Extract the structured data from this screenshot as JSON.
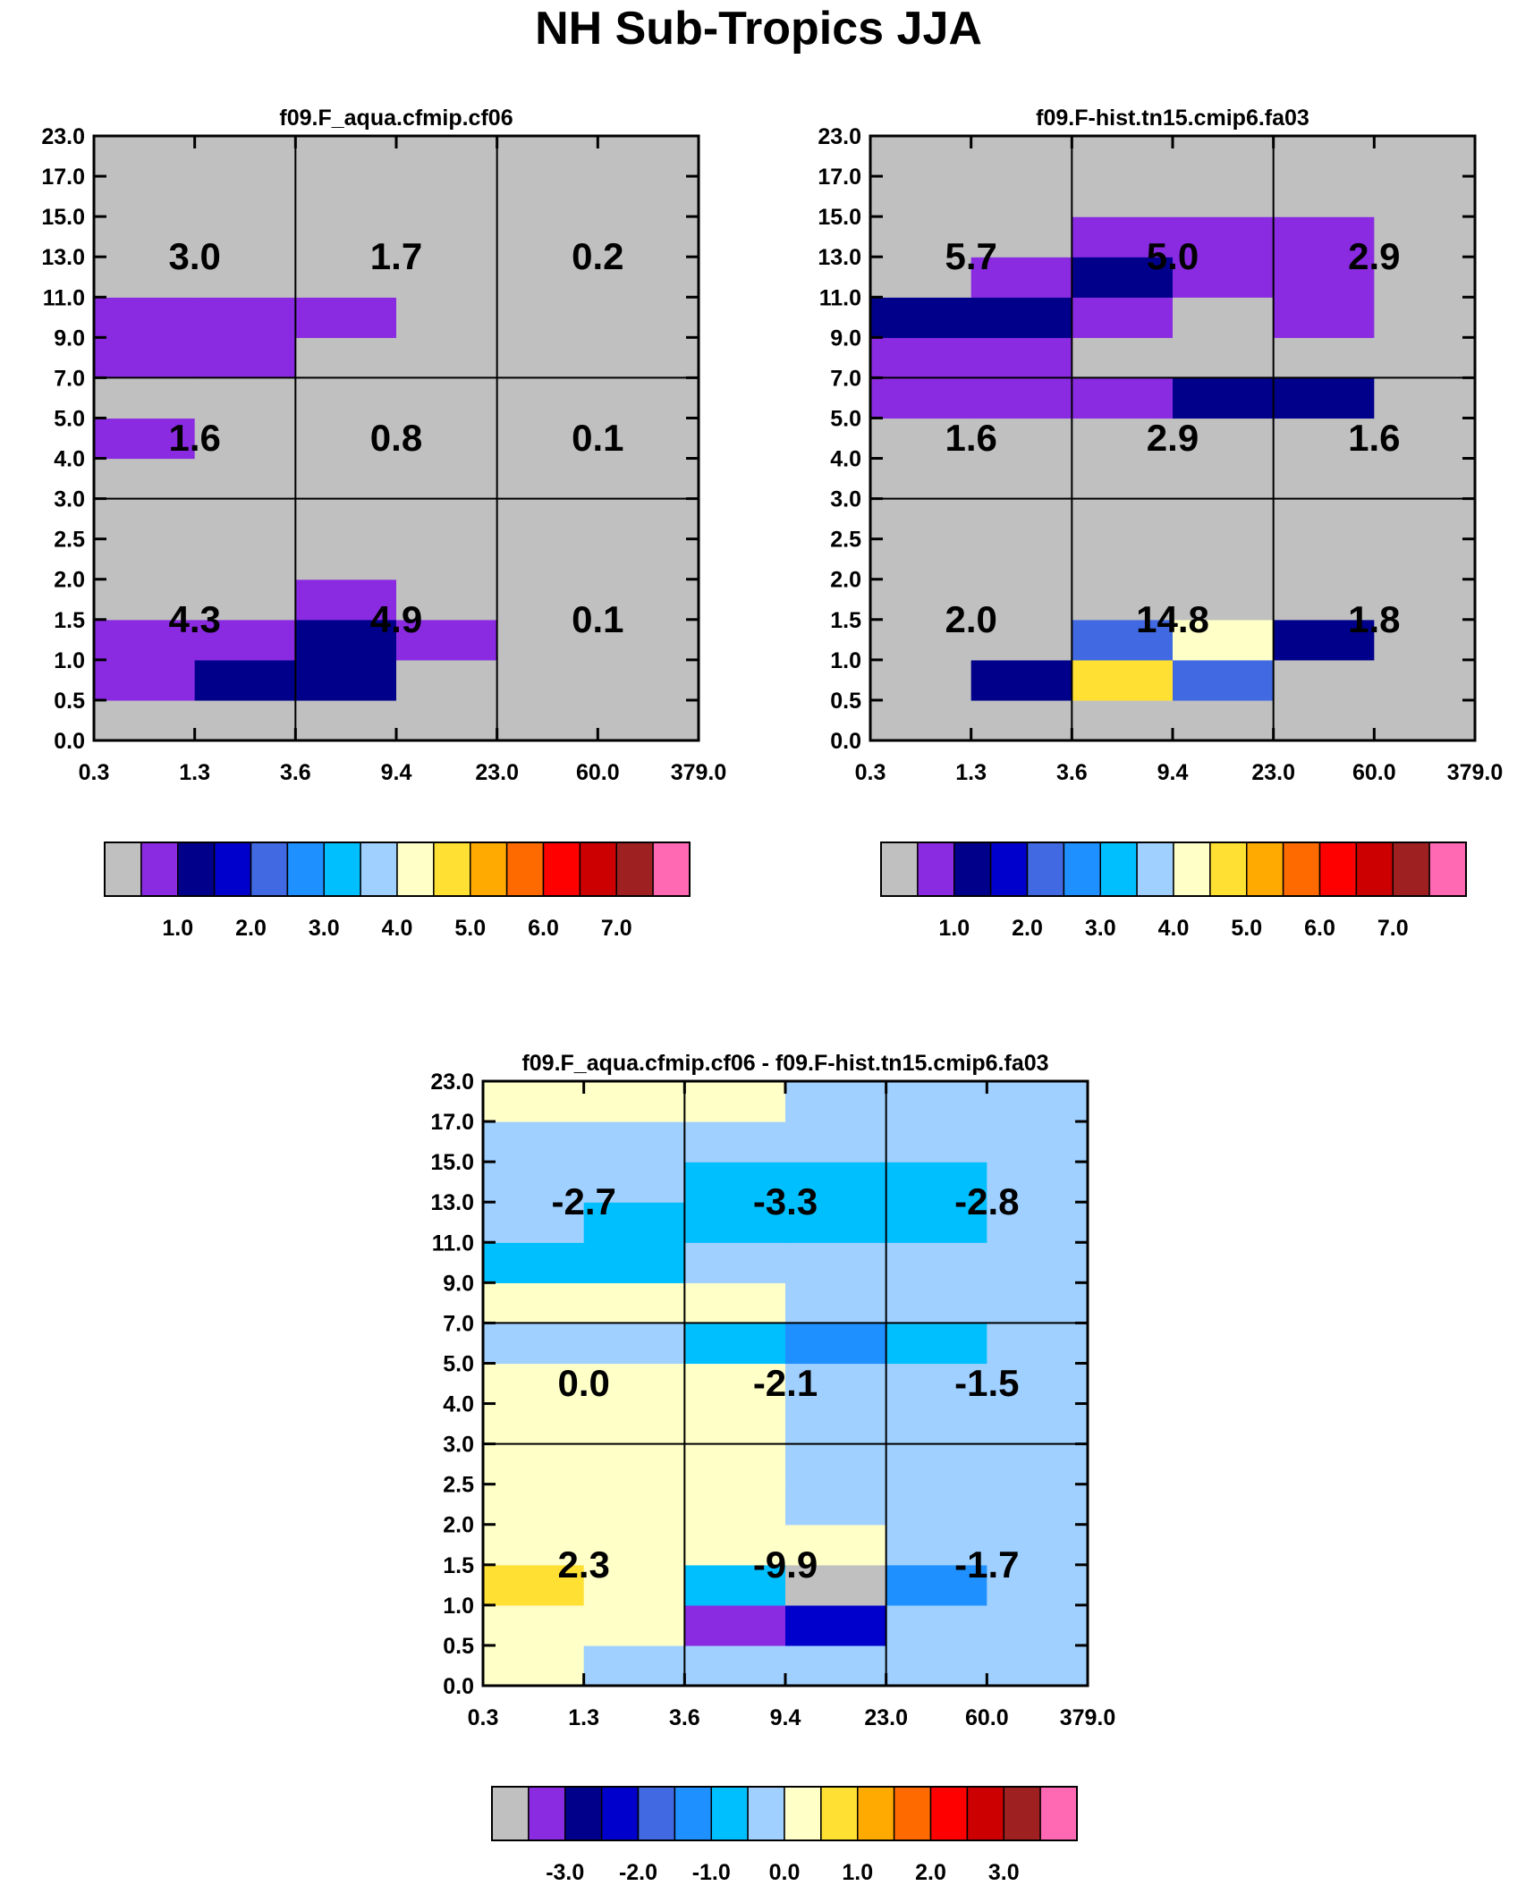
{
  "title": "NH Sub-Tropics JJA",
  "colors": {
    "palette": [
      "#c0c0c0",
      "#8a2be2",
      "#00008b",
      "#0000cd",
      "#4169e1",
      "#1e90ff",
      "#00bfff",
      "#a0d0ff",
      "#ffffc8",
      "#ffe033",
      "#ffaa00",
      "#ff6a00",
      "#ff0000",
      "#cc0000",
      "#9e2020",
      "#ff69b4"
    ],
    "background": "#c0c0c0"
  },
  "chart_data": [
    {
      "type": "heatmap",
      "title": "f09.F_aqua.cfmip.cf06",
      "x_tick_labels": [
        "0.3",
        "1.3",
        "3.6",
        "9.4",
        "23.0",
        "60.0",
        "379.0"
      ],
      "y_tick_labels": [
        "0.0",
        "0.5",
        "1.0",
        "1.5",
        "2.0",
        "2.5",
        "3.0",
        "4.0",
        "5.0",
        "7.0",
        "9.0",
        "11.0",
        "13.0",
        "15.0",
        "17.0",
        "23.0"
      ],
      "cell_color_index": [
        [
          0,
          0,
          0,
          0,
          0,
          0
        ],
        [
          1,
          2,
          2,
          0,
          0,
          0
        ],
        [
          1,
          1,
          2,
          1,
          0,
          0
        ],
        [
          0,
          0,
          1,
          0,
          0,
          0
        ],
        [
          0,
          0,
          0,
          0,
          0,
          0
        ],
        [
          0,
          0,
          0,
          0,
          0,
          0
        ],
        [
          0,
          0,
          0,
          0,
          0,
          0
        ],
        [
          1,
          0,
          0,
          0,
          0,
          0
        ],
        [
          0,
          0,
          0,
          0,
          0,
          0
        ],
        [
          1,
          1,
          0,
          0,
          0,
          0
        ],
        [
          1,
          1,
          1,
          0,
          0,
          0
        ],
        [
          0,
          0,
          0,
          0,
          0,
          0
        ],
        [
          0,
          0,
          0,
          0,
          0,
          0
        ],
        [
          0,
          0,
          0,
          0,
          0,
          0
        ],
        [
          0,
          0,
          0,
          0,
          0,
          0
        ]
      ],
      "box_labels": [
        [
          "4.3",
          "4.9",
          "0.1"
        ],
        [
          "1.6",
          "0.8",
          "0.1"
        ],
        [
          "3.0",
          "1.7",
          "0.2"
        ]
      ],
      "colorbar": {
        "labels": [
          "1.0",
          "2.0",
          "3.0",
          "4.0",
          "5.0",
          "6.0",
          "7.0"
        ]
      }
    },
    {
      "type": "heatmap",
      "title": "f09.F-hist.tn15.cmip6.fa03",
      "x_tick_labels": [
        "0.3",
        "1.3",
        "3.6",
        "9.4",
        "23.0",
        "60.0",
        "379.0"
      ],
      "y_tick_labels": [
        "0.0",
        "0.5",
        "1.0",
        "1.5",
        "2.0",
        "2.5",
        "3.0",
        "4.0",
        "5.0",
        "7.0",
        "9.0",
        "11.0",
        "13.0",
        "15.0",
        "17.0",
        "23.0"
      ],
      "cell_color_index": [
        [
          0,
          0,
          0,
          0,
          0,
          0
        ],
        [
          0,
          2,
          9,
          4,
          0,
          0
        ],
        [
          0,
          0,
          4,
          8,
          2,
          0
        ],
        [
          0,
          0,
          0,
          0,
          0,
          0
        ],
        [
          0,
          0,
          0,
          0,
          0,
          0
        ],
        [
          0,
          0,
          0,
          0,
          0,
          0
        ],
        [
          0,
          0,
          0,
          0,
          0,
          0
        ],
        [
          0,
          0,
          0,
          0,
          0,
          0
        ],
        [
          1,
          1,
          1,
          2,
          2,
          0
        ],
        [
          1,
          1,
          0,
          0,
          0,
          0
        ],
        [
          2,
          2,
          1,
          0,
          1,
          0
        ],
        [
          0,
          1,
          2,
          1,
          1,
          0
        ],
        [
          0,
          0,
          1,
          1,
          1,
          0
        ],
        [
          0,
          0,
          0,
          0,
          0,
          0
        ],
        [
          0,
          0,
          0,
          0,
          0,
          0
        ]
      ],
      "box_labels": [
        [
          "2.0",
          "14.8",
          "1.8"
        ],
        [
          "1.6",
          "2.9",
          "1.6"
        ],
        [
          "5.7",
          "5.0",
          "2.9"
        ]
      ],
      "colorbar": {
        "labels": [
          "1.0",
          "2.0",
          "3.0",
          "4.0",
          "5.0",
          "6.0",
          "7.0"
        ]
      }
    },
    {
      "type": "heatmap",
      "title": "f09.F_aqua.cfmip.cf06 - f09.F-hist.tn15.cmip6.fa03",
      "x_tick_labels": [
        "0.3",
        "1.3",
        "3.6",
        "9.4",
        "23.0",
        "60.0",
        "379.0"
      ],
      "y_tick_labels": [
        "0.0",
        "0.5",
        "1.0",
        "1.5",
        "2.0",
        "2.5",
        "3.0",
        "4.0",
        "5.0",
        "7.0",
        "9.0",
        "11.0",
        "13.0",
        "15.0",
        "17.0",
        "23.0"
      ],
      "cell_color_index": [
        [
          8,
          7,
          7,
          7,
          7,
          7
        ],
        [
          8,
          8,
          1,
          3,
          7,
          7
        ],
        [
          9,
          8,
          6,
          0,
          5,
          7
        ],
        [
          8,
          8,
          8,
          8,
          7,
          7
        ],
        [
          8,
          8,
          8,
          7,
          7,
          7
        ],
        [
          8,
          8,
          8,
          7,
          7,
          7
        ],
        [
          8,
          8,
          8,
          7,
          7,
          7
        ],
        [
          8,
          8,
          8,
          7,
          7,
          7
        ],
        [
          7,
          7,
          6,
          5,
          6,
          7
        ],
        [
          8,
          8,
          8,
          7,
          7,
          7
        ],
        [
          6,
          6,
          7,
          7,
          7,
          7
        ],
        [
          7,
          6,
          6,
          6,
          6,
          7
        ],
        [
          7,
          7,
          6,
          6,
          6,
          7
        ],
        [
          7,
          7,
          7,
          7,
          7,
          7
        ],
        [
          8,
          8,
          8,
          7,
          7,
          7
        ]
      ],
      "box_labels": [
        [
          "2.3",
          "-9.9",
          "-1.7"
        ],
        [
          "0.0",
          "-2.1",
          "-1.5"
        ],
        [
          "-2.7",
          "-3.3",
          "-2.8"
        ]
      ],
      "colorbar": {
        "labels": [
          "-3.0",
          "-2.0",
          "-1.0",
          "0.0",
          "1.0",
          "2.0",
          "3.0"
        ]
      }
    }
  ]
}
